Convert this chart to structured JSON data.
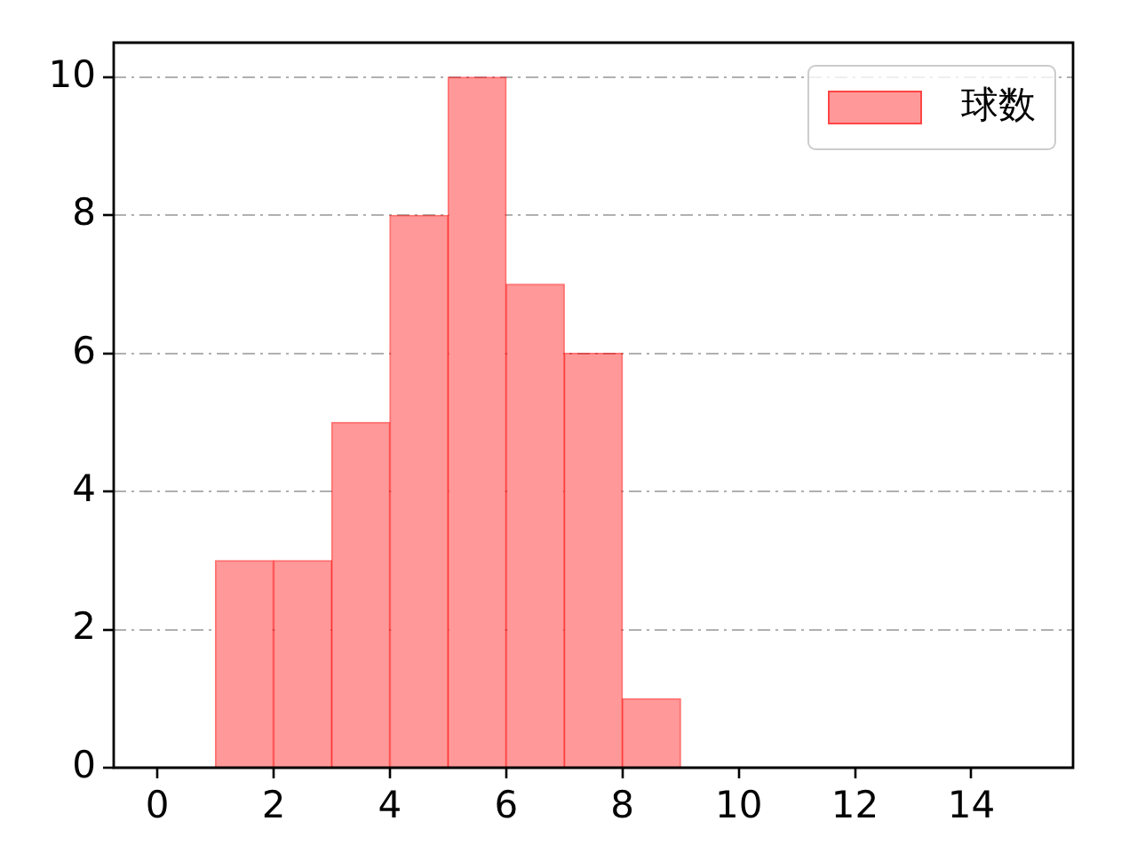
{
  "chart_data": {
    "type": "histogram",
    "bins": [
      1,
      2,
      3,
      4,
      5,
      6,
      7,
      8,
      9
    ],
    "series": [
      {
        "name": "球数",
        "color": "#ff9999",
        "values": [
          3,
          3,
          5,
          8,
          10,
          7,
          6,
          1
        ]
      }
    ],
    "xlim": [
      -0.75,
      15.75
    ],
    "xticks": [
      0,
      2,
      4,
      6,
      8,
      10,
      12,
      14
    ],
    "ylim": [
      0,
      10.5
    ],
    "yticks": [
      0,
      2,
      4,
      6,
      8,
      10
    ],
    "grid": "y",
    "legend": "top right"
  }
}
